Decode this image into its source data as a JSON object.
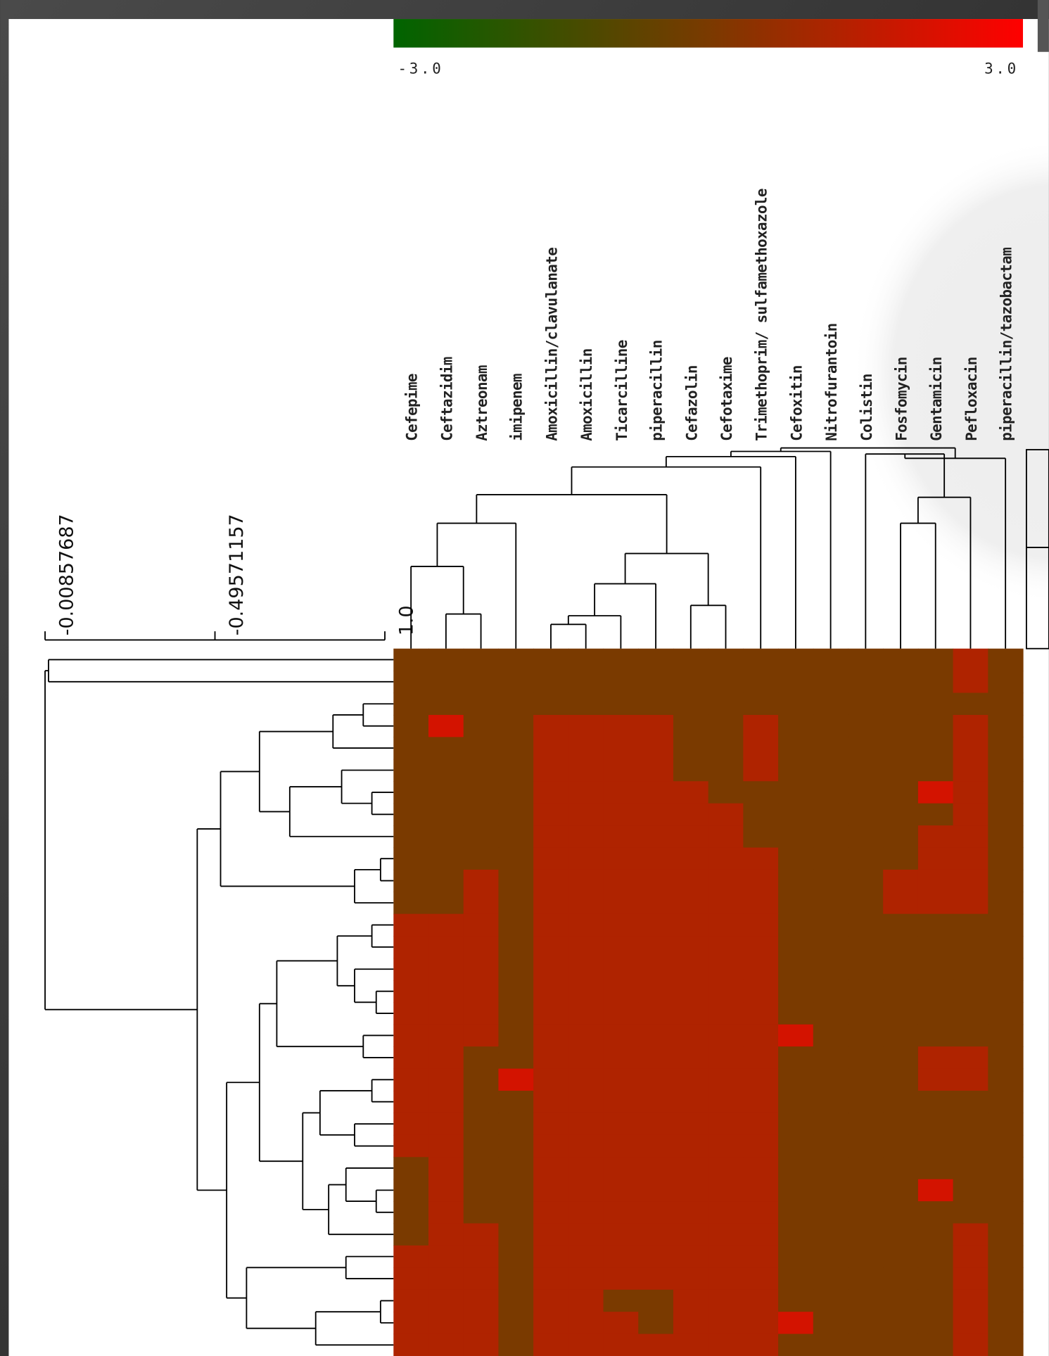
{
  "chart_data": {
    "type": "heatmap",
    "columns": [
      "Cefepime",
      "Ceftazidim",
      "Aztreonam",
      "imipenem",
      "Amoxicillin/clavulanate",
      "Amoxicillin",
      "Ticarcilline",
      "piperacillin",
      "Cefazolin",
      "Cefotaxime",
      "Trimethoprim/ sulfamethoxazole",
      "Cefoxitin",
      "Nitrofurantoin",
      "Colistin",
      "Fosfomycin",
      "Gentamicin",
      "Pefloxacin",
      "piperacillin/tazobactam"
    ],
    "values": [
      [
        0,
        0,
        0,
        0,
        0,
        0,
        0,
        0,
        0,
        0,
        0,
        0,
        0,
        0,
        0,
        0,
        1.2,
        0
      ],
      [
        0,
        0,
        0,
        0,
        0,
        0,
        0,
        0,
        0,
        0,
        0,
        0,
        0,
        0,
        0,
        0,
        1.2,
        0
      ],
      [
        0,
        0,
        0,
        0,
        0,
        0,
        0,
        0,
        0,
        0,
        0,
        0,
        0,
        0,
        0,
        0,
        0,
        0
      ],
      [
        0,
        2,
        0,
        0,
        1.2,
        1.2,
        1.2,
        1.2,
        0,
        0,
        1.2,
        0,
        0,
        0,
        0,
        0,
        1.2,
        0
      ],
      [
        0,
        0,
        0,
        0,
        1.2,
        1.2,
        1.2,
        1.2,
        0,
        0,
        1.2,
        0,
        0,
        0,
        0,
        0,
        1.2,
        0
      ],
      [
        0,
        0,
        0,
        0,
        1.2,
        1.2,
        1.2,
        1.2,
        0,
        0,
        1.2,
        0,
        0,
        0,
        0,
        0,
        1.2,
        0
      ],
      [
        0,
        0,
        0,
        0,
        1.2,
        1.2,
        1.2,
        1.2,
        1.2,
        0,
        0,
        0,
        0,
        0,
        0,
        2,
        1.2,
        0
      ],
      [
        0,
        0,
        0,
        0,
        1.2,
        1.2,
        1.2,
        1.2,
        1.2,
        1.2,
        0,
        0,
        0,
        0,
        0,
        0,
        1.2,
        0
      ],
      [
        0,
        0,
        0,
        0,
        1.2,
        1.2,
        1.2,
        1.2,
        1.2,
        1.2,
        0,
        0,
        0,
        0,
        0,
        1.2,
        1.2,
        0
      ],
      [
        0,
        0,
        0,
        0,
        1.2,
        1.2,
        1.2,
        1.2,
        1.2,
        1.2,
        1.2,
        0,
        0,
        0,
        0,
        1.2,
        1.2,
        0
      ],
      [
        0,
        0,
        1.2,
        0,
        1.2,
        1.2,
        1.2,
        1.2,
        1.2,
        1.2,
        1.2,
        0,
        0,
        0,
        1.2,
        1.2,
        1.2,
        0
      ],
      [
        0,
        0,
        1.2,
        0,
        1.2,
        1.2,
        1.2,
        1.2,
        1.2,
        1.2,
        1.2,
        0,
        0,
        0,
        1.2,
        1.2,
        1.2,
        0
      ],
      [
        1.2,
        1.2,
        1.2,
        0,
        1.2,
        1.2,
        1.2,
        1.2,
        1.2,
        1.2,
        1.2,
        0,
        0,
        0,
        0,
        0,
        0,
        0
      ],
      [
        1.2,
        1.2,
        1.2,
        0,
        1.2,
        1.2,
        1.2,
        1.2,
        1.2,
        1.2,
        1.2,
        0,
        0,
        0,
        0,
        0,
        0,
        0
      ],
      [
        1.2,
        1.2,
        1.2,
        0,
        1.2,
        1.2,
        1.2,
        1.2,
        1.2,
        1.2,
        1.2,
        0,
        0,
        0,
        0,
        0,
        0,
        0
      ],
      [
        1.2,
        1.2,
        1.2,
        0,
        1.2,
        1.2,
        1.2,
        1.2,
        1.2,
        1.2,
        1.2,
        0,
        0,
        0,
        0,
        0,
        0,
        0
      ],
      [
        1.2,
        1.2,
        1.2,
        0,
        1.2,
        1.2,
        1.2,
        1.2,
        1.2,
        1.2,
        1.2,
        0,
        0,
        0,
        0,
        0,
        0,
        0
      ],
      [
        1.2,
        1.2,
        1.2,
        0,
        1.2,
        1.2,
        1.2,
        1.2,
        1.2,
        1.2,
        1.2,
        2,
        0,
        0,
        0,
        0,
        0,
        0
      ],
      [
        1.2,
        1.2,
        0,
        0,
        1.2,
        1.2,
        1.2,
        1.2,
        1.2,
        1.2,
        1.2,
        0,
        0,
        0,
        0,
        1.2,
        1.2,
        0
      ],
      [
        1.2,
        1.2,
        0,
        2,
        1.2,
        1.2,
        1.2,
        1.2,
        1.2,
        1.2,
        1.2,
        0,
        0,
        0,
        0,
        1.2,
        1.2,
        0
      ],
      [
        1.2,
        1.2,
        0,
        0,
        1.2,
        1.2,
        1.2,
        1.2,
        1.2,
        1.2,
        1.2,
        0,
        0,
        0,
        0,
        0,
        0,
        0
      ],
      [
        1.2,
        1.2,
        0,
        0,
        1.2,
        1.2,
        1.2,
        1.2,
        1.2,
        1.2,
        1.2,
        0,
        0,
        0,
        0,
        0,
        0,
        0
      ],
      [
        1.2,
        1.2,
        0,
        0,
        1.2,
        1.2,
        1.2,
        1.2,
        1.2,
        1.2,
        1.2,
        0,
        0,
        0,
        0,
        0,
        0,
        0
      ],
      [
        0,
        1.2,
        0,
        0,
        1.2,
        1.2,
        1.2,
        1.2,
        1.2,
        1.2,
        1.2,
        0,
        0,
        0,
        0,
        0,
        0,
        0
      ],
      [
        0,
        1.2,
        0,
        0,
        1.2,
        1.2,
        1.2,
        1.2,
        1.2,
        1.2,
        1.2,
        0,
        0,
        0,
        0,
        2,
        0,
        0
      ],
      [
        0,
        1.2,
        0,
        0,
        1.2,
        1.2,
        1.2,
        1.2,
        1.2,
        1.2,
        1.2,
        0,
        0,
        0,
        0,
        0,
        0,
        0
      ],
      [
        0,
        1.2,
        1.2,
        0,
        1.2,
        1.2,
        1.2,
        1.2,
        1.2,
        1.2,
        1.2,
        0,
        0,
        0,
        0,
        0,
        1.2,
        0
      ],
      [
        1.2,
        1.2,
        1.2,
        0,
        1.2,
        1.2,
        1.2,
        1.2,
        1.2,
        1.2,
        1.2,
        0,
        0,
        0,
        0,
        0,
        1.2,
        0
      ],
      [
        1.2,
        1.2,
        1.2,
        0,
        1.2,
        1.2,
        1.2,
        1.2,
        1.2,
        1.2,
        1.2,
        0,
        0,
        0,
        0,
        0,
        1.2,
        0
      ],
      [
        1.2,
        1.2,
        1.2,
        0,
        1.2,
        1.2,
        0,
        0,
        1.2,
        1.2,
        1.2,
        0,
        0,
        0,
        0,
        0,
        1.2,
        0
      ],
      [
        1.2,
        1.2,
        1.2,
        0,
        1.2,
        1.2,
        1.2,
        0,
        1.2,
        1.2,
        1.2,
        2,
        0,
        0,
        0,
        0,
        1.2,
        0
      ],
      [
        1.2,
        1.2,
        1.2,
        0,
        1.2,
        1.2,
        1.2,
        1.2,
        1.2,
        1.2,
        1.2,
        0,
        0,
        0,
        0,
        0,
        1.2,
        0
      ]
    ],
    "colors": [
      "#006400",
      "#7a3a00",
      "#ff0000"
    ],
    "colorbar_lim": [
      -3,
      3
    ],
    "colorbar_ticks": [
      {
        "value": -3,
        "label": "-3.0"
      },
      {
        "value": 3,
        "label": "3.0"
      }
    ],
    "dendrogram_ticks": [
      -0.00857687,
      -0.49571157,
      {
        "value": 1,
        "label": "1.0"
      }
    ]
  }
}
